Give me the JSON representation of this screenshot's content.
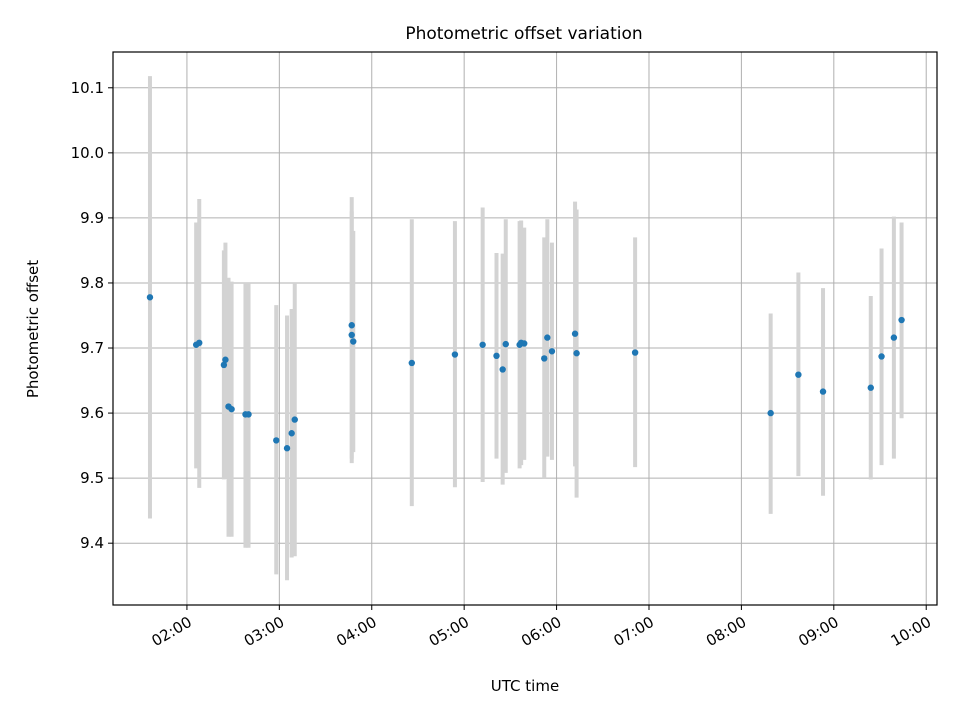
{
  "chart_data": {
    "type": "scatter",
    "title": "Photometric offset variation",
    "xlabel": "UTC time",
    "ylabel": "Photometric offset",
    "grid": true,
    "x_ticks": [
      "02:00",
      "03:00",
      "04:00",
      "05:00",
      "06:00",
      "07:00",
      "08:00",
      "09:00",
      "10:00"
    ],
    "y_ticks": [
      "9.4",
      "9.5",
      "9.6",
      "9.7",
      "9.8",
      "9.9",
      "10.0",
      "10.1"
    ],
    "xlim": [
      "01:12",
      "10:07"
    ],
    "ylim": [
      9.305,
      10.155
    ],
    "colors": {
      "point": "#1f77b4",
      "errorbar": "#d3d3d3",
      "grid": "#b0b0b0"
    },
    "series": [
      {
        "points": [
          {
            "t": "01:36",
            "y": 9.778,
            "lo": 9.438,
            "hi": 10.118
          },
          {
            "t": "02:06",
            "y": 9.705,
            "lo": 9.515,
            "hi": 9.893
          },
          {
            "t": "02:08",
            "y": 9.708,
            "lo": 9.485,
            "hi": 9.929
          },
          {
            "t": "02:24",
            "y": 9.674,
            "lo": 9.498,
            "hi": 9.85
          },
          {
            "t": "02:25",
            "y": 9.682,
            "lo": 9.5,
            "hi": 9.862
          },
          {
            "t": "02:27",
            "y": 9.61,
            "lo": 9.41,
            "hi": 9.808
          },
          {
            "t": "02:29",
            "y": 9.606,
            "lo": 9.41,
            "hi": 9.802
          },
          {
            "t": "02:38",
            "y": 9.598,
            "lo": 9.393,
            "hi": 9.8
          },
          {
            "t": "02:40",
            "y": 9.598,
            "lo": 9.393,
            "hi": 9.8
          },
          {
            "t": "02:58",
            "y": 9.558,
            "lo": 9.352,
            "hi": 9.766
          },
          {
            "t": "03:05",
            "y": 9.546,
            "lo": 9.343,
            "hi": 9.75
          },
          {
            "t": "03:08",
            "y": 9.569,
            "lo": 9.378,
            "hi": 9.76
          },
          {
            "t": "03:10",
            "y": 9.59,
            "lo": 9.38,
            "hi": 9.8
          },
          {
            "t": "03:47",
            "y": 9.735,
            "lo": 9.523,
            "hi": 9.932
          },
          {
            "t": "03:47",
            "y": 9.72,
            "lo": 9.53,
            "hi": 9.91
          },
          {
            "t": "03:48",
            "y": 9.71,
            "lo": 9.54,
            "hi": 9.88
          },
          {
            "t": "04:26",
            "y": 9.677,
            "lo": 9.457,
            "hi": 9.898
          },
          {
            "t": "04:54",
            "y": 9.69,
            "lo": 9.486,
            "hi": 9.895
          },
          {
            "t": "05:12",
            "y": 9.705,
            "lo": 9.494,
            "hi": 9.916
          },
          {
            "t": "05:21",
            "y": 9.688,
            "lo": 9.53,
            "hi": 9.846
          },
          {
            "t": "05:25",
            "y": 9.667,
            "lo": 9.49,
            "hi": 9.845
          },
          {
            "t": "05:27",
            "y": 9.706,
            "lo": 9.508,
            "hi": 9.898
          },
          {
            "t": "05:36",
            "y": 9.705,
            "lo": 9.515,
            "hi": 9.895
          },
          {
            "t": "05:37",
            "y": 9.708,
            "lo": 9.52,
            "hi": 9.896
          },
          {
            "t": "05:39",
            "y": 9.707,
            "lo": 9.528,
            "hi": 9.885
          },
          {
            "t": "05:52",
            "y": 9.684,
            "lo": 9.5,
            "hi": 9.87
          },
          {
            "t": "05:54",
            "y": 9.716,
            "lo": 9.533,
            "hi": 9.898
          },
          {
            "t": "05:57",
            "y": 9.695,
            "lo": 9.528,
            "hi": 9.862
          },
          {
            "t": "06:12",
            "y": 9.722,
            "lo": 9.518,
            "hi": 9.925
          },
          {
            "t": "06:13",
            "y": 9.692,
            "lo": 9.47,
            "hi": 9.913
          },
          {
            "t": "06:51",
            "y": 9.693,
            "lo": 9.517,
            "hi": 9.87
          },
          {
            "t": "08:19",
            "y": 9.6,
            "lo": 9.445,
            "hi": 9.753
          },
          {
            "t": "08:37",
            "y": 9.659,
            "lo": 9.503,
            "hi": 9.816
          },
          {
            "t": "08:53",
            "y": 9.633,
            "lo": 9.473,
            "hi": 9.792
          },
          {
            "t": "09:24",
            "y": 9.639,
            "lo": 9.498,
            "hi": 9.78
          },
          {
            "t": "09:31",
            "y": 9.687,
            "lo": 9.52,
            "hi": 9.853
          },
          {
            "t": "09:39",
            "y": 9.716,
            "lo": 9.53,
            "hi": 9.902
          },
          {
            "t": "09:44",
            "y": 9.743,
            "lo": 9.592,
            "hi": 9.893
          }
        ]
      }
    ]
  }
}
